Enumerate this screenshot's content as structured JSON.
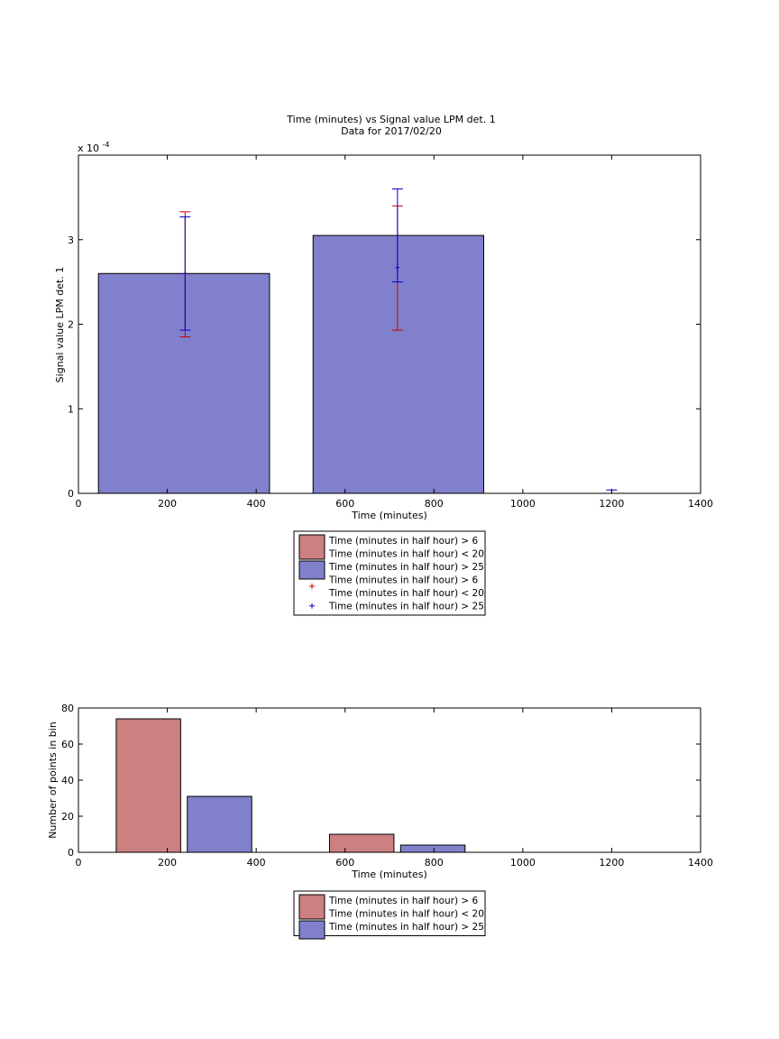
{
  "chart_data": [
    {
      "type": "bar",
      "title": "Time (minutes) vs Signal value LPM det. 1",
      "subtitle": "Data for 2017/02/20",
      "xlabel": "Time (minutes)",
      "ylabel": "Signal value LPM det. 1",
      "y_exponent_label": "x 10",
      "y_exponent_power": "-4",
      "xlim": [
        0,
        1400
      ],
      "ylim": [
        0,
        4
      ],
      "y_scale_factor": 0.0001,
      "xticks": [
        "0",
        "200",
        "400",
        "600",
        "800",
        "1000",
        "1200",
        "1400"
      ],
      "yticks": [
        "0",
        "1",
        "2",
        "3"
      ],
      "grid": false,
      "bars": [
        {
          "x_start": 45,
          "x_end": 430,
          "value": 2.6,
          "color": "#8080cc"
        },
        {
          "x_start": 528,
          "x_end": 912,
          "value": 3.05,
          "color": "#8080cc"
        }
      ],
      "errorbars": [
        {
          "series": "red",
          "x": 240,
          "center": 2.6,
          "low": 1.85,
          "high": 3.33,
          "color": "#cc0000"
        },
        {
          "series": "blue",
          "x": 240,
          "center": 2.6,
          "low": 1.93,
          "high": 3.27,
          "color": "#0000cc"
        },
        {
          "series": "red",
          "x": 718,
          "center": 2.67,
          "low": 1.93,
          "high": 3.4,
          "color": "#cc0000"
        },
        {
          "series": "blue",
          "x": 718,
          "center": 2.67,
          "low": 2.5,
          "high": 3.6,
          "color": "#0000cc"
        },
        {
          "series": "blue",
          "x": 1200,
          "center": 0,
          "low": 0,
          "high": 0.04,
          "color": "#0000cc"
        }
      ],
      "legend": {
        "placement": "below",
        "entries": [
          {
            "type": "patch",
            "color": "#cc8080",
            "lines": [
              "Time (minutes in half hour) > 6",
              "Time (minutes in half hour) < 20"
            ]
          },
          {
            "type": "patch",
            "color": "#8080cc",
            "lines": [
              "Time (minutes in half hour) > 25"
            ]
          },
          {
            "type": "marker",
            "color": "#cc0000",
            "lines": [
              "Time (minutes in half hour) > 6",
              "Time (minutes in half hour) < 20"
            ]
          },
          {
            "type": "marker",
            "color": "#0000cc",
            "lines": [
              "Time (minutes in half hour) > 25"
            ]
          }
        ]
      }
    },
    {
      "type": "bar",
      "xlabel": "Time (minutes)",
      "ylabel": "Number of points in bin",
      "xlim": [
        0,
        1400
      ],
      "ylim": [
        0,
        80
      ],
      "xticks": [
        "0",
        "200",
        "400",
        "600",
        "800",
        "1000",
        "1200",
        "1400"
      ],
      "yticks": [
        "0",
        "20",
        "40",
        "60",
        "80"
      ],
      "grid": false,
      "bars": [
        {
          "x_start": 85,
          "x_end": 230,
          "value": 74,
          "color": "#cc8080"
        },
        {
          "x_start": 245,
          "x_end": 390,
          "value": 31,
          "color": "#8080cc"
        },
        {
          "x_start": 565,
          "x_end": 710,
          "value": 10,
          "color": "#cc8080"
        },
        {
          "x_start": 725,
          "x_end": 870,
          "value": 4,
          "color": "#8080cc"
        }
      ],
      "legend": {
        "placement": "below",
        "entries": [
          {
            "type": "patch",
            "color": "#cc8080",
            "lines": [
              "Time (minutes in half hour) > 6",
              "Time (minutes in half hour) < 20"
            ]
          },
          {
            "type": "patch",
            "color": "#8080cc",
            "lines": [
              "Time (minutes in half hour) > 25"
            ]
          }
        ]
      }
    }
  ]
}
